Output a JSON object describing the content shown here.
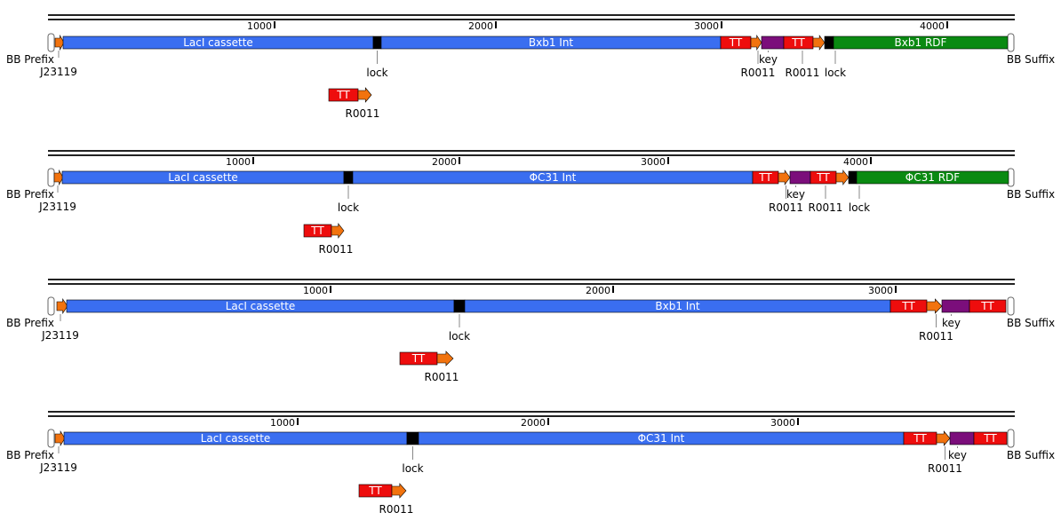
{
  "colors": {
    "cds": "#3a6ef0",
    "terminator": "#ee0d0d",
    "promoter": "#f2730e",
    "lock": "#000000",
    "key": "#7b0e7b",
    "rdf": "#0a8a12",
    "backbone": "#222222"
  },
  "constructs": [
    {
      "ticks": [
        "1000",
        "2000",
        "3000",
        "4000"
      ],
      "bb_prefix": "BB Prefix",
      "bb_suffix": "BB Suffix",
      "promoter_start": "J23119",
      "cds1": "LacI cassette",
      "lock1": "lock",
      "cds2": "Bxb1 Int",
      "tt1": "TT",
      "r1": "R0011",
      "key": "key",
      "tt2": "TT",
      "r2": "R0011",
      "lock2": "lock",
      "rdf": "Bxb1 RDF",
      "sub_tt": "TT",
      "sub_r": "R0011"
    },
    {
      "ticks": [
        "1000",
        "2000",
        "3000",
        "4000"
      ],
      "bb_prefix": "BB Prefix",
      "bb_suffix": "BB Suffix",
      "promoter_start": "J23119",
      "cds1": "LacI cassette",
      "lock1": "lock",
      "cds2": "ΦC31 Int",
      "tt1": "TT",
      "r1": "R0011",
      "key": "key",
      "tt2": "TT",
      "r2": "R0011",
      "lock2": "lock",
      "rdf": "ΦC31 RDF",
      "sub_tt": "TT",
      "sub_r": "R0011"
    },
    {
      "ticks": [
        "1000",
        "2000",
        "3000"
      ],
      "bb_prefix": "BB Prefix",
      "bb_suffix": "BB Suffix",
      "promoter_start": "J23119",
      "cds1": "LacI cassette",
      "lock1": "lock",
      "cds2": "Bxb1 Int",
      "tt1": "TT",
      "r1": "R0011",
      "key": "key",
      "tt2": "TT",
      "sub_tt": "TT",
      "sub_r": "R0011"
    },
    {
      "ticks": [
        "1000",
        "2000",
        "3000"
      ],
      "bb_prefix": "BB Prefix",
      "bb_suffix": "BB Suffix",
      "promoter_start": "J23119",
      "cds1": "LacI cassette",
      "lock1": "lock",
      "cds2": "ΦC31 Int",
      "tt1": "TT",
      "r1": "R0011",
      "key": "key",
      "tt2": "TT",
      "sub_tt": "TT",
      "sub_r": "R0011"
    }
  ]
}
